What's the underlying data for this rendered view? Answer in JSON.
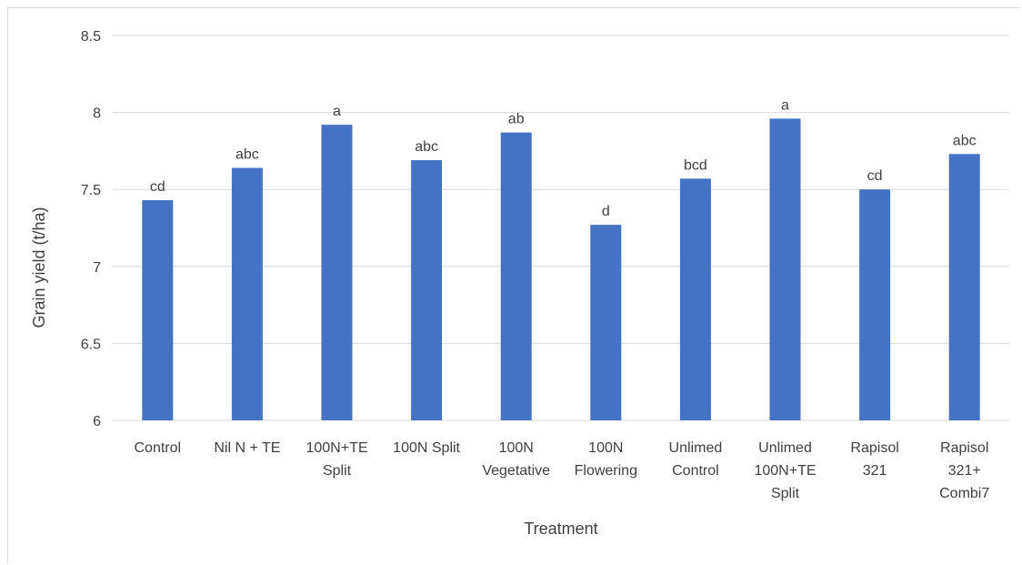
{
  "chart_data": {
    "type": "bar",
    "title": "",
    "xlabel": "Treatment",
    "ylabel": "Grain yield (t/ha)",
    "ylim": [
      6,
      8.5
    ],
    "yticks": [
      "6",
      "6.5",
      "7",
      "7.5",
      "8",
      "8.5"
    ],
    "grid": true,
    "legend": "none",
    "categories": [
      "Control",
      "Nil N + TE",
      "100N+TE Split",
      "100N Split",
      "100N Vegetative",
      "100N Flowering",
      "Unlimed Control",
      "Unlimed 100N+TE Split",
      "Rapisol 321",
      "Rapisol 321+ Combi7"
    ],
    "category_lines": [
      [
        "Control"
      ],
      [
        "Nil N + TE"
      ],
      [
        "100N+TE",
        "Split"
      ],
      [
        "100N Split"
      ],
      [
        "100N",
        "Vegetative"
      ],
      [
        "100N",
        "Flowering"
      ],
      [
        "Unlimed",
        "Control"
      ],
      [
        "Unlimed",
        "100N+TE",
        "Split"
      ],
      [
        "Rapisol",
        "321"
      ],
      [
        "Rapisol",
        "321+",
        "Combi7"
      ]
    ],
    "values": [
      7.43,
      7.64,
      7.92,
      7.69,
      7.87,
      7.27,
      7.57,
      7.96,
      7.5,
      7.73
    ],
    "data_labels": [
      "cd",
      "abc",
      "a",
      "abc",
      "ab",
      "d",
      "bcd",
      "a",
      "cd",
      "abc"
    ],
    "bar_color": "#4472C4",
    "grid_color": "#d9d9d9"
  }
}
